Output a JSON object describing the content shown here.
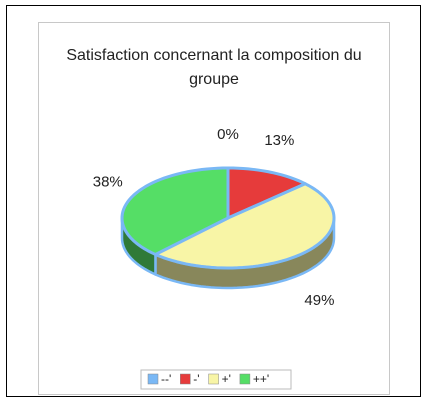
{
  "chart_data": {
    "type": "pie",
    "title": "Satisfaction concernant la composition du groupe",
    "categories": [
      "--'",
      "-'",
      "+'",
      "++'"
    ],
    "values": [
      0,
      13,
      49,
      38
    ],
    "value_labels": [
      "0%",
      "13%",
      "49%",
      "38%"
    ],
    "colors": [
      "#7ab8f5",
      "#e63b3b",
      "#f8f5a6",
      "#55de66"
    ],
    "legend": "bottom"
  }
}
